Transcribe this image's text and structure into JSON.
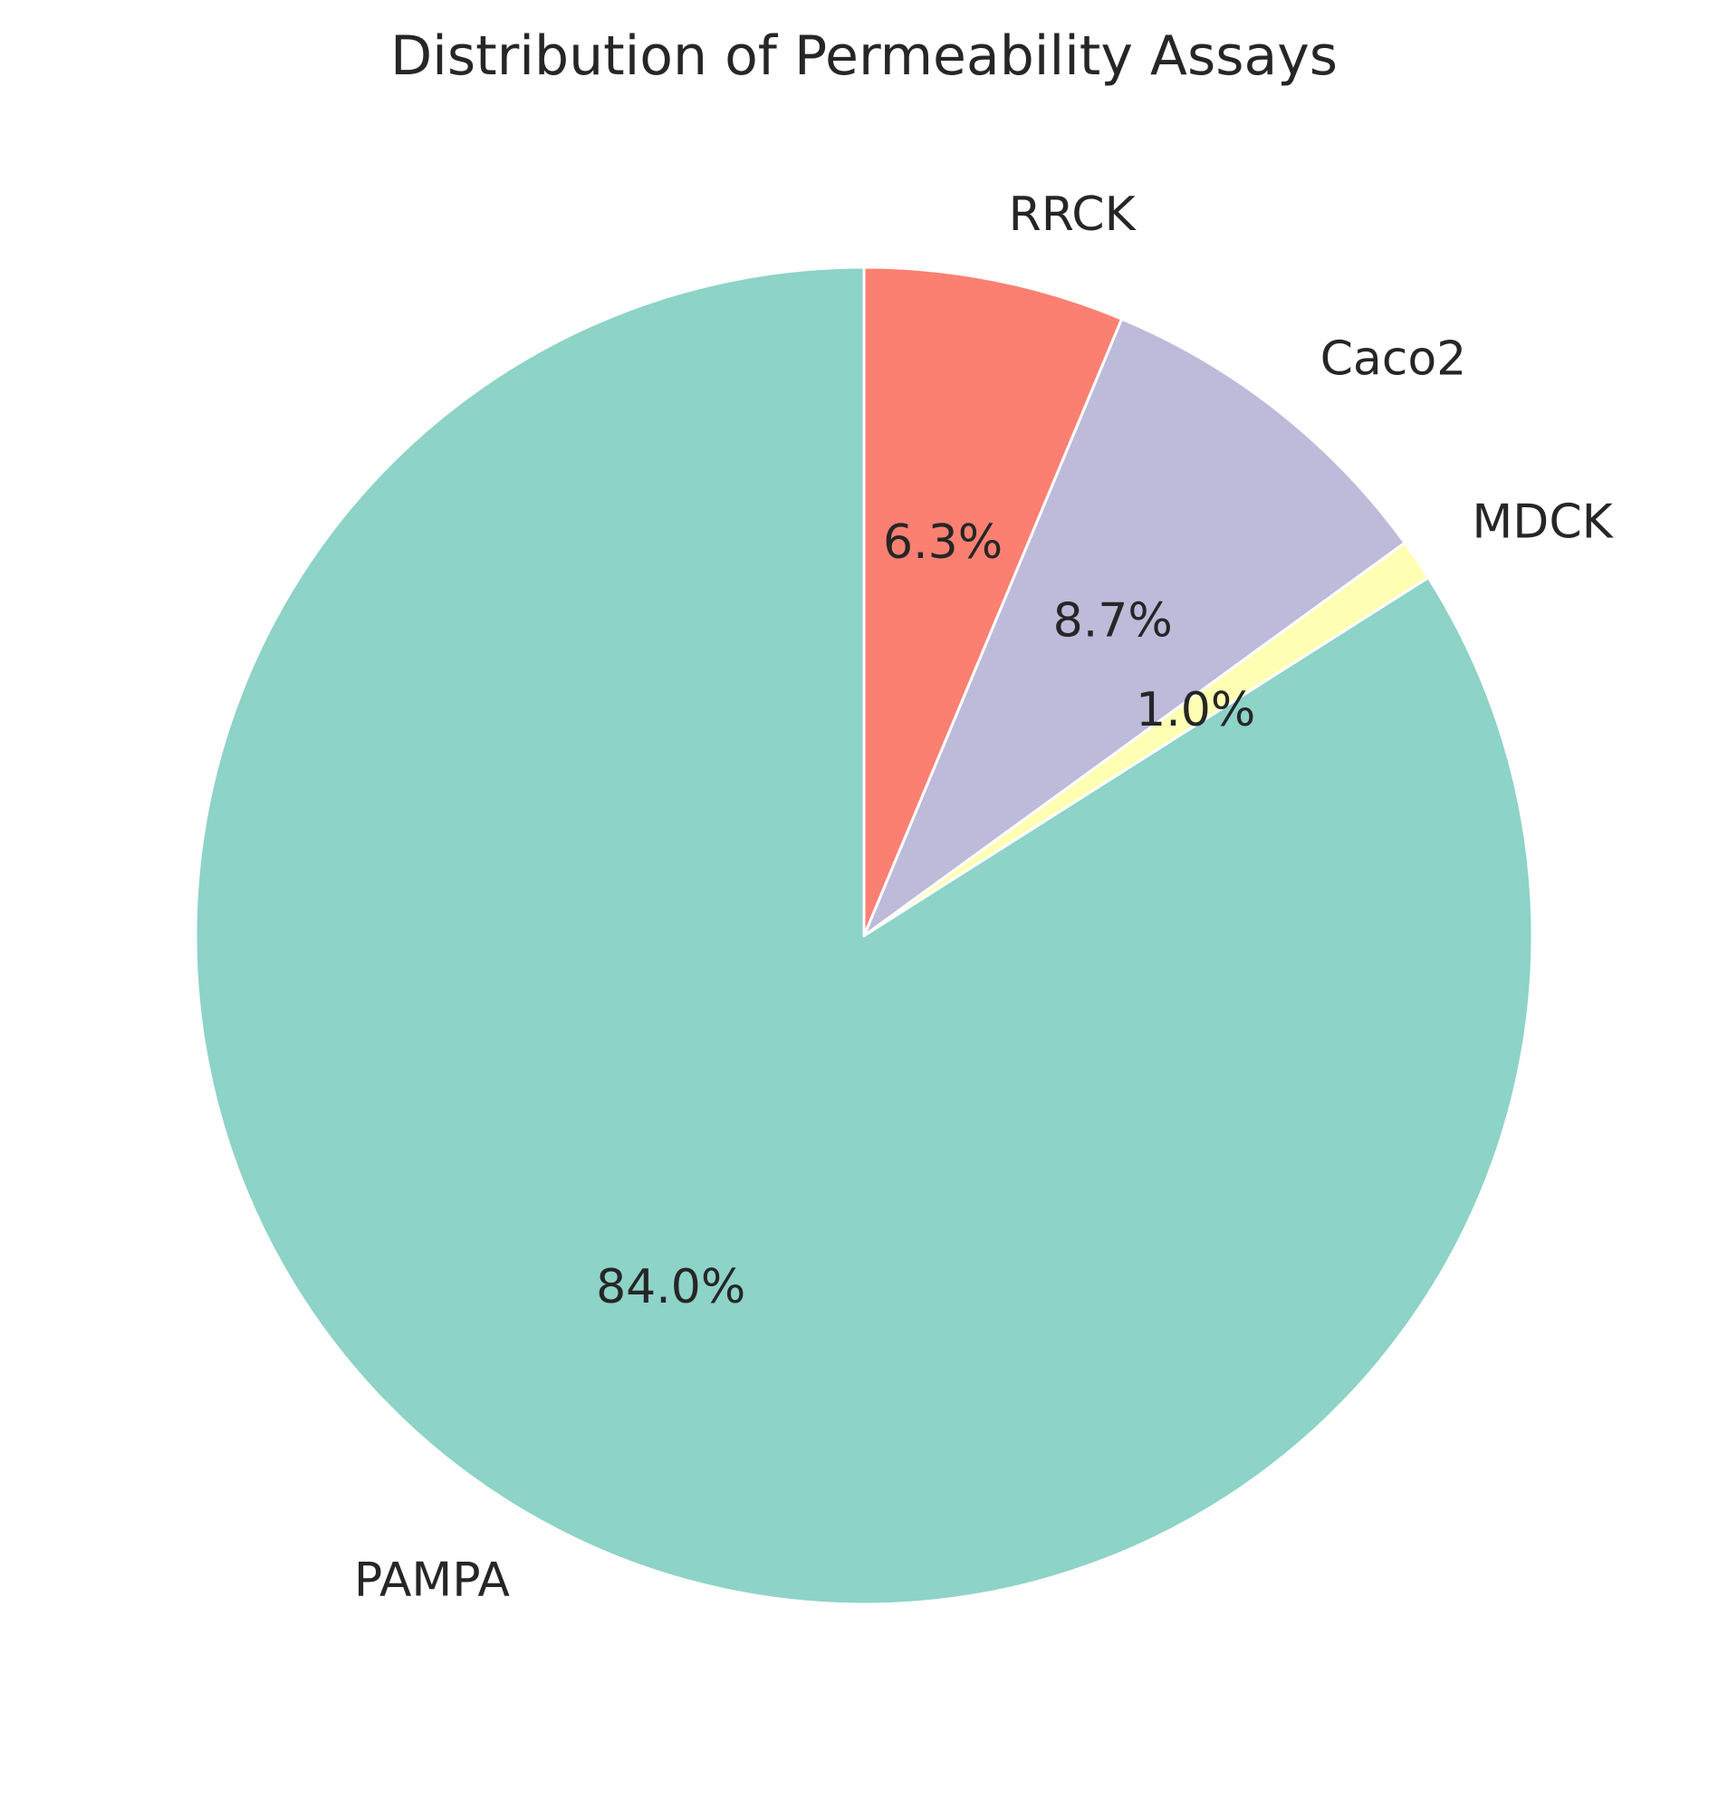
{
  "chart_data": {
    "type": "pie",
    "title": "Distribution of Permeability Assays",
    "start_angle_deg": 90,
    "direction": "counterclockwise",
    "slices": [
      {
        "label": "PAMPA",
        "value": 84.0,
        "pct_label": "84.0%",
        "color": "#8dd3c7"
      },
      {
        "label": "MDCK",
        "value": 1.0,
        "pct_label": "1.0%",
        "color": "#ffffb3"
      },
      {
        "label": "Caco2",
        "value": 8.7,
        "pct_label": "8.7%",
        "color": "#bebada"
      },
      {
        "label": "RRCK",
        "value": 6.3,
        "pct_label": "6.3%",
        "color": "#fb8072"
      }
    ]
  }
}
